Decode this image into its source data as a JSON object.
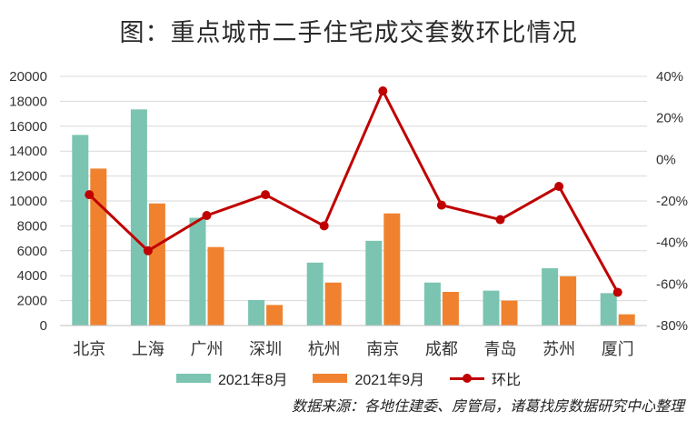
{
  "colors": {
    "aug": "#7bc4b1",
    "sep": "#f0822f",
    "mom": "#c00000",
    "grid": "#d9d9d9",
    "axis": "#bfbfbf"
  },
  "chart_data": {
    "type": "bar",
    "title": "图：重点城市二手住宅成交套数环比情况",
    "categories": [
      "北京",
      "上海",
      "广州",
      "深圳",
      "杭州",
      "南京",
      "成都",
      "青岛",
      "苏州",
      "厦门"
    ],
    "series": [
      {
        "name": "2021年8月",
        "type": "bar",
        "axis": "left",
        "values": [
          15300,
          17350,
          8650,
          2050,
          5050,
          6800,
          3450,
          2800,
          4600,
          2600
        ]
      },
      {
        "name": "2021年9月",
        "type": "bar",
        "axis": "left",
        "values": [
          12600,
          9800,
          6300,
          1650,
          3450,
          9000,
          2700,
          2000,
          3950,
          900
        ]
      },
      {
        "name": "环比",
        "type": "line",
        "axis": "right",
        "unit": "%",
        "values": [
          -17,
          -44,
          -27,
          -17,
          -32,
          33,
          -22,
          -29,
          -13,
          -64
        ]
      }
    ],
    "left_axis": {
      "min": 0,
      "max": 20000,
      "step": 2000,
      "labels": [
        "0",
        "2000",
        "4000",
        "6000",
        "8000",
        "10000",
        "12000",
        "14000",
        "16000",
        "18000",
        "20000"
      ]
    },
    "right_axis": {
      "min": -80,
      "max": 40,
      "step": 20,
      "labels": [
        "-80%",
        "-60%",
        "-40%",
        "-20%",
        "0%",
        "20%",
        "40%"
      ]
    },
    "grid": true,
    "legend_position": "bottom"
  },
  "legend": {
    "aug": "2021年8月",
    "sep": "2021年9月",
    "mom": "环比"
  },
  "source": "数据来源：各地住建委、房管局，诸葛找房数据研究中心整理"
}
